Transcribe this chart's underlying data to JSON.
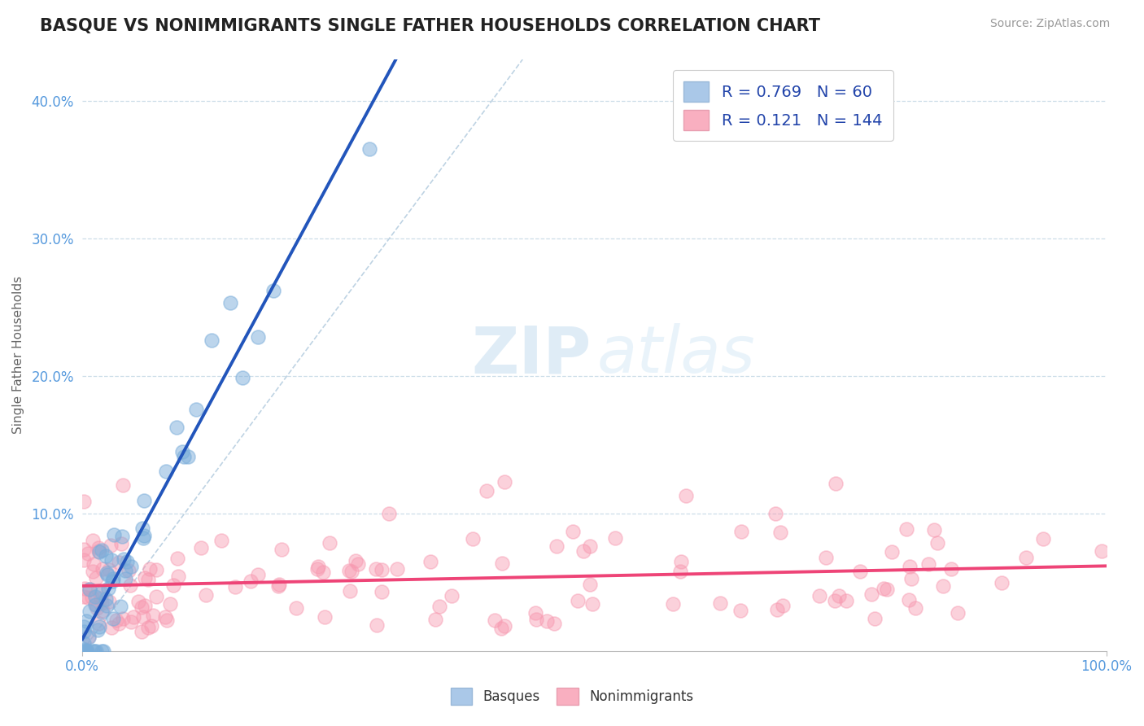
{
  "title": "BASQUE VS NONIMMIGRANTS SINGLE FATHER HOUSEHOLDS CORRELATION CHART",
  "source_text": "Source: ZipAtlas.com",
  "ylabel": "Single Father Households",
  "xlim": [
    0,
    1.0
  ],
  "ylim": [
    0,
    0.43
  ],
  "legend_blue_R": "0.769",
  "legend_blue_N": "60",
  "legend_pink_R": "0.121",
  "legend_pink_N": "144",
  "blue_color": "#7aadda",
  "pink_color": "#f799b0",
  "blue_line_color": "#2255bb",
  "pink_line_color": "#ee4477",
  "title_color": "#222222",
  "axis_label_color": "#5599dd",
  "background_color": "#ffffff",
  "grid_color": "#ccdde8"
}
